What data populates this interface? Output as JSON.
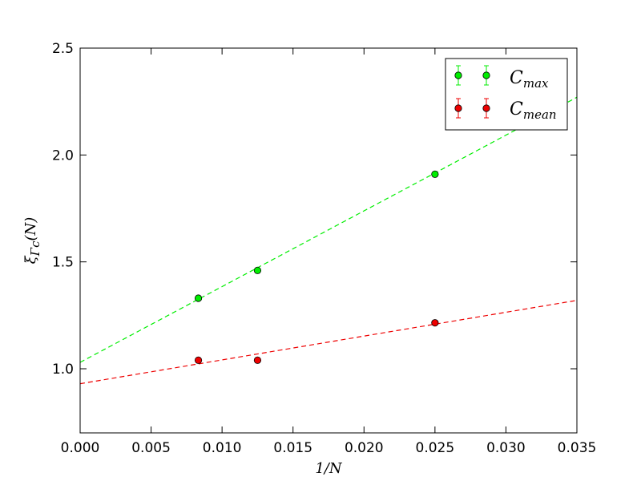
{
  "chart_data": {
    "type": "scatter",
    "xlabel": "1/N",
    "ylabel": "ξΓc(N)",
    "ylabel_main": "ξ",
    "ylabel_sub": "Γc",
    "ylabel_rest": "(N)",
    "xlim": [
      0.0,
      0.035
    ],
    "ylim": [
      0.7,
      2.5
    ],
    "xticks": [
      "0.000",
      "0.005",
      "0.010",
      "0.015",
      "0.020",
      "0.025",
      "0.030",
      "0.035"
    ],
    "yticks": [
      "1.0",
      "1.5",
      "2.0",
      "2.5"
    ],
    "grid": false,
    "legend_position": "top-right",
    "series": [
      {
        "name": "Cmax",
        "name_main": "C",
        "name_sub": "max",
        "color": "#00ee00",
        "x": [
          0.00833,
          0.0125,
          0.025
        ],
        "y": [
          1.33,
          1.46,
          1.91
        ],
        "fit": {
          "x": [
            0.0,
            0.035
          ],
          "y": [
            1.03,
            2.27
          ]
        }
      },
      {
        "name": "Cmean",
        "name_main": "C",
        "name_sub": "mean",
        "color": "#ee0000",
        "x": [
          0.00833,
          0.0125,
          0.025
        ],
        "y": [
          1.04,
          1.04,
          1.215
        ],
        "fit": {
          "x": [
            0.0,
            0.035
          ],
          "y": [
            0.93,
            1.32
          ]
        }
      }
    ]
  }
}
